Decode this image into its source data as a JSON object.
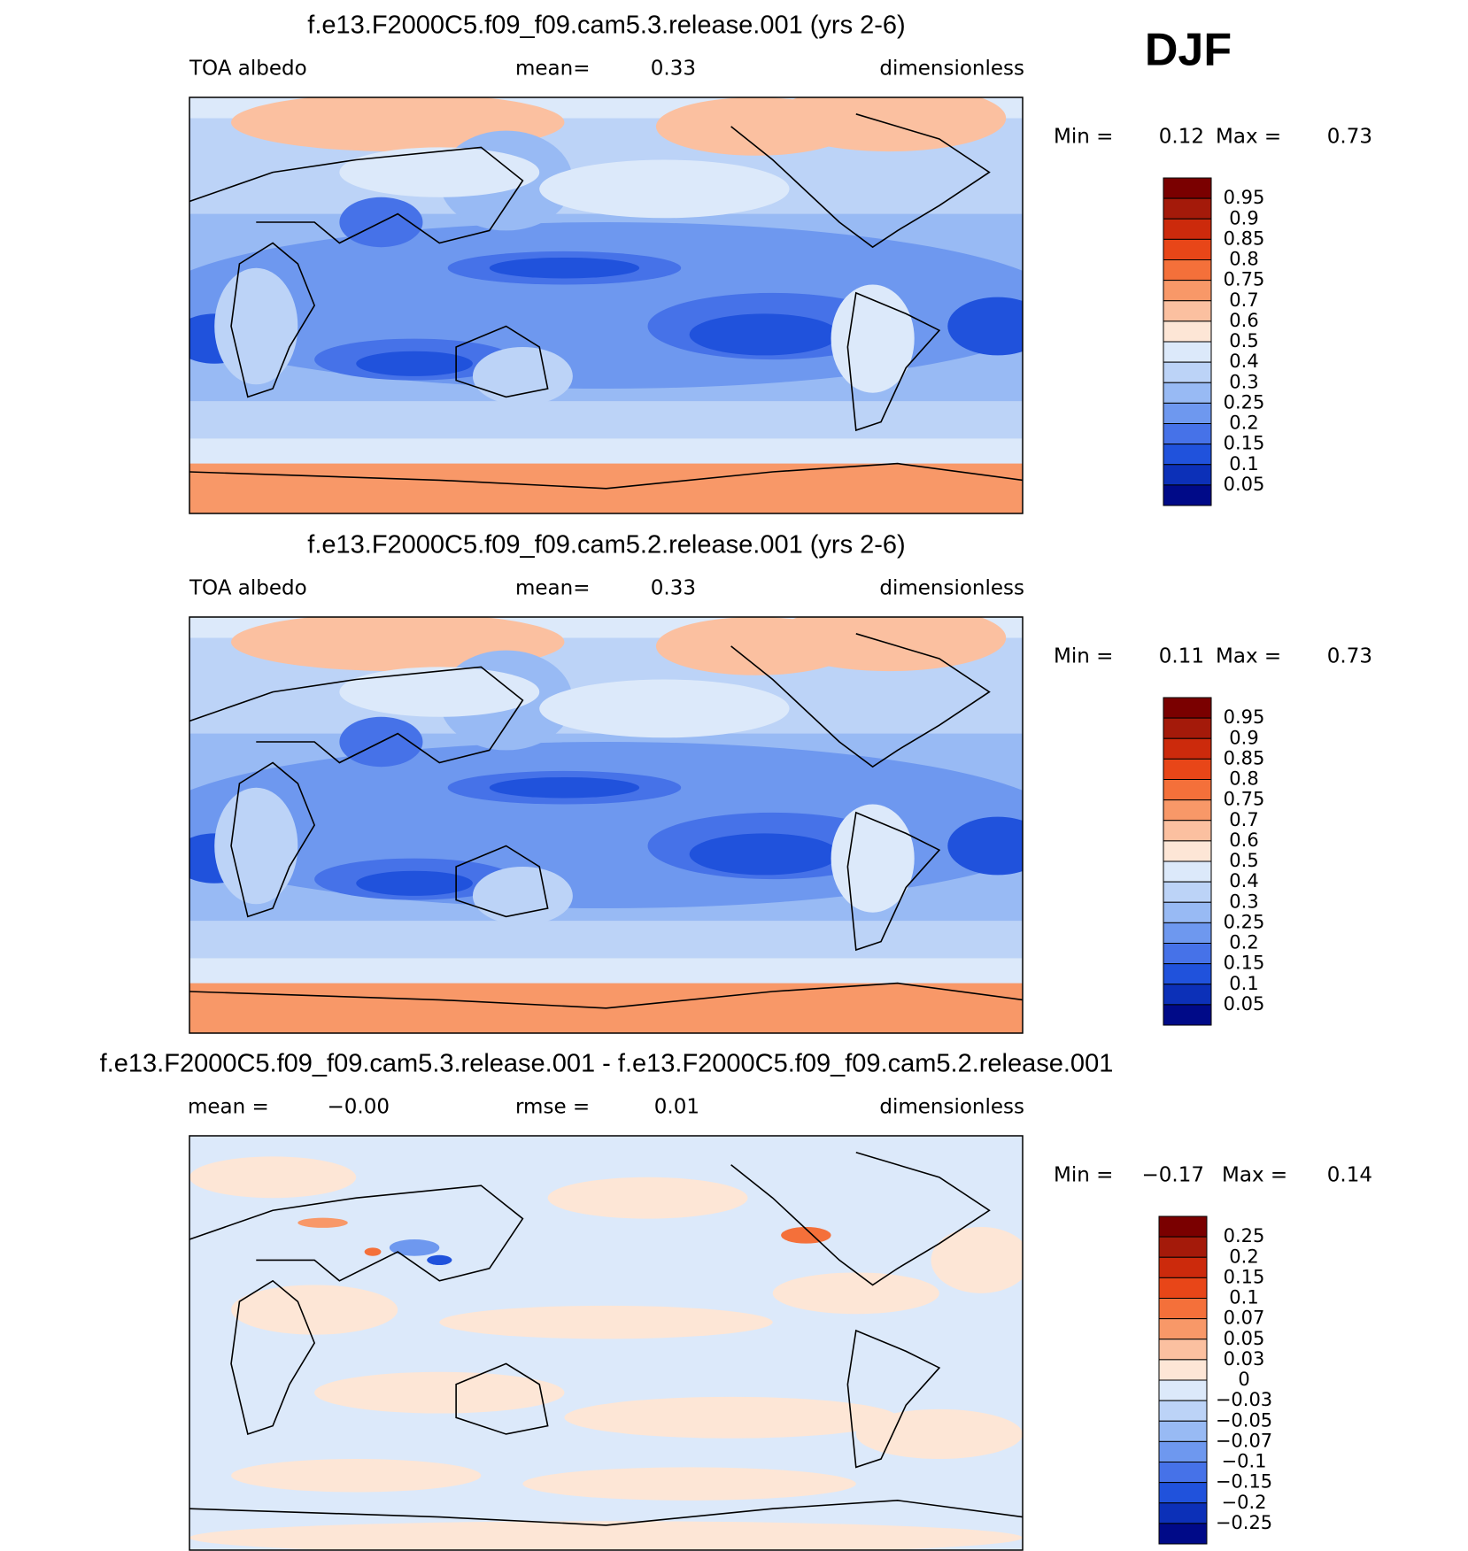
{
  "header": {
    "season": "DJF"
  },
  "panels": [
    {
      "title": "f.e13.F2000C5.f09_f09.cam5.3.release.001 (yrs 2-6)",
      "variable": "TOA albedo",
      "stats": [
        {
          "label": "mean=",
          "value": "0.33"
        }
      ],
      "units": "dimensionless",
      "min_label": "Min =",
      "min": "0.12",
      "max_label": "Max =",
      "max": "0.73",
      "colorbar": {
        "labels": [
          "0.95",
          "0.9",
          "0.85",
          "0.8",
          "0.75",
          "0.7",
          "0.6",
          "0.5",
          "0.4",
          "0.3",
          "0.25",
          "0.2",
          "0.15",
          "0.1",
          "0.05"
        ],
        "colors": [
          "#7a0000",
          "#a41a0a",
          "#cc2a0c",
          "#e84618",
          "#f4703a",
          "#f89868",
          "#fbc0a0",
          "#fde6d6",
          "#dce9fa",
          "#bcd3f7",
          "#98baf4",
          "#6e98ef",
          "#4672e8",
          "#2052dc",
          "#0c30b8",
          "#000a88"
        ]
      }
    },
    {
      "title": "f.e13.F2000C5.f09_f09.cam5.2.release.001 (yrs 2-6)",
      "variable": "TOA albedo",
      "stats": [
        {
          "label": "mean=",
          "value": "0.33"
        }
      ],
      "units": "dimensionless",
      "min_label": "Min =",
      "min": "0.11",
      "max_label": "Max =",
      "max": "0.73",
      "colorbar": {
        "labels": [
          "0.95",
          "0.9",
          "0.85",
          "0.8",
          "0.75",
          "0.7",
          "0.6",
          "0.5",
          "0.4",
          "0.3",
          "0.25",
          "0.2",
          "0.15",
          "0.1",
          "0.05"
        ],
        "colors": [
          "#7a0000",
          "#a41a0a",
          "#cc2a0c",
          "#e84618",
          "#f4703a",
          "#f89868",
          "#fbc0a0",
          "#fde6d6",
          "#dce9fa",
          "#bcd3f7",
          "#98baf4",
          "#6e98ef",
          "#4672e8",
          "#2052dc",
          "#0c30b8",
          "#000a88"
        ]
      }
    },
    {
      "title": "f.e13.F2000C5.f09_f09.cam5.3.release.001 - f.e13.F2000C5.f09_f09.cam5.2.release.001",
      "stats": [
        {
          "label": "mean =",
          "value": "−0.00"
        },
        {
          "label": "rmse =",
          "value": "0.01"
        }
      ],
      "units": "dimensionless",
      "min_label": "Min =",
      "min": "−0.17",
      "max_label": "Max =",
      "max": "0.14",
      "colorbar": {
        "labels": [
          "0.25",
          "0.2",
          "0.15",
          "0.1",
          "0.07",
          "0.05",
          "0.03",
          "0",
          "−0.03",
          "−0.05",
          "−0.07",
          "−0.1",
          "−0.15",
          "−0.2",
          "−0.25"
        ],
        "colors": [
          "#7a0000",
          "#a41a0a",
          "#cc2a0c",
          "#e84618",
          "#f4703a",
          "#f89868",
          "#fbc0a0",
          "#fde6d6",
          "#dce9fa",
          "#bcd3f7",
          "#98baf4",
          "#6e98ef",
          "#4672e8",
          "#2052dc",
          "#0c30b8",
          "#000a88"
        ]
      }
    }
  ]
}
